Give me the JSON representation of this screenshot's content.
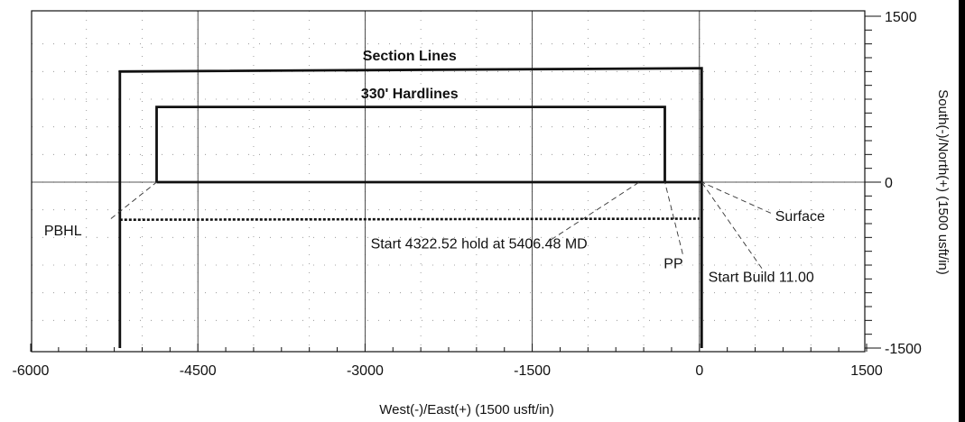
{
  "chart_data": {
    "type": "line",
    "xlabel": "West(-)/East(+) (1500 usft/in)",
    "ylabel": "South(-)/North(+) (1500 usft/in)",
    "xlim": [
      -6000,
      1500
    ],
    "ylim": [
      -1500,
      1500
    ],
    "xticks": [
      -6000,
      -4500,
      -3000,
      -1500,
      0,
      1500
    ],
    "yticks": [
      -1500,
      0,
      1500
    ],
    "x_tick_labels": [
      "-6000",
      "-4500",
      "-3000",
      "-1500",
      "0",
      "1500"
    ],
    "y_tick_labels": [
      "-1500",
      "0",
      "1500"
    ],
    "series": [
      {
        "name": "Section Lines",
        "style": "solid-thick",
        "points": [
          [
            -5200,
            -1500
          ],
          [
            -5200,
            1000
          ],
          [
            20,
            1030
          ],
          [
            20,
            -1500
          ]
        ]
      },
      {
        "name": "330' Hardlines",
        "style": "solid-thick",
        "points": [
          [
            -4870,
            0
          ],
          [
            -4870,
            680
          ],
          [
            -310,
            680
          ],
          [
            -310,
            0
          ],
          [
            -4870,
            0
          ]
        ]
      },
      {
        "name": "",
        "style": "solid-thick",
        "points": [
          [
            -310,
            0
          ],
          [
            20,
            0
          ]
        ]
      },
      {
        "name": "",
        "style": "dotted-thick",
        "points": [
          [
            -5200,
            -340
          ],
          [
            0,
            -330
          ]
        ]
      }
    ],
    "annotations": [
      {
        "id": "section-lines",
        "text": "Section Lines",
        "x": -2600,
        "y": 1100,
        "bold": true
      },
      {
        "id": "hardlines",
        "text": "330' Hardlines",
        "x": -2600,
        "y": 760,
        "bold": true
      },
      {
        "id": "pbhl",
        "text": "PBHL",
        "x": -5880,
        "y": -480,
        "bold": false,
        "leader": [
          [
            -5280,
            -330
          ],
          [
            -4870,
            0
          ]
        ]
      },
      {
        "id": "start-hold",
        "text": "Start 4322.52 hold at 5406.48 MD",
        "x": -2950,
        "y": -600,
        "bold": false,
        "leader": [
          [
            -1330,
            -520
          ],
          [
            -540,
            0
          ]
        ]
      },
      {
        "id": "pp",
        "text": "PP",
        "x": -320,
        "y": -780,
        "bold": false,
        "leader": [
          [
            -150,
            -650
          ],
          [
            -310,
            0
          ]
        ]
      },
      {
        "id": "surface",
        "text": "Surface",
        "x": 680,
        "y": -350,
        "bold": false,
        "leader": [
          [
            640,
            -280
          ],
          [
            20,
            0
          ]
        ]
      },
      {
        "id": "start-build",
        "text": "Start Build 11.00",
        "x": 80,
        "y": -900,
        "bold": false,
        "leader": [
          [
            560,
            -780
          ],
          [
            20,
            0
          ]
        ]
      }
    ],
    "grid": true,
    "grid_style": "dotted",
    "legend": "none"
  }
}
